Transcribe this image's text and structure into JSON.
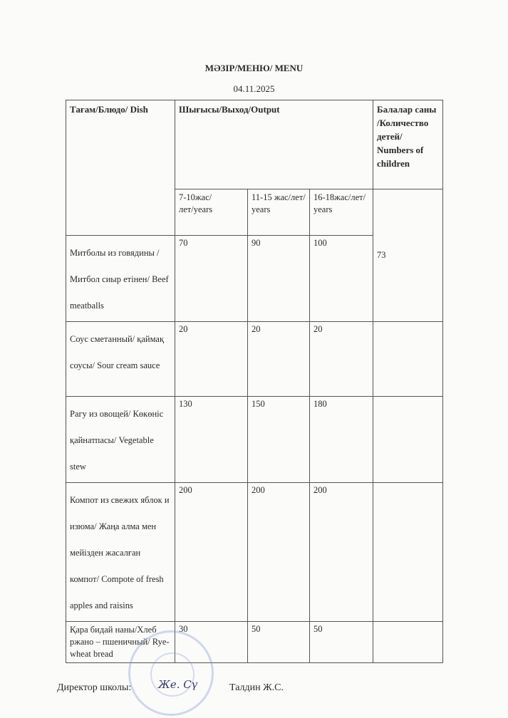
{
  "title": "МӘЗІР/МЕНЮ/ MENU",
  "date": "04.11.2025",
  "table": {
    "headers": {
      "dish": "Тағам/Блюдо/ Dish",
      "output": "Шығысы/Выход/Output",
      "children": "Балалар саны /Количество детей/ Numbers of children",
      "age_7_10": "7-10жас/лет/years",
      "age_11_15": "11-15 жас/лет/ years",
      "age_16_18": "16-18жас/лет/ years"
    },
    "children_count": "73",
    "rows": [
      {
        "dish": "Митболы из говядины /Митбол сиыр етінен/ Beef meatballs",
        "a": "70",
        "b": "90",
        "c": "100"
      },
      {
        "dish": "Соус сметанный/ қаймақ соусы/ Sour cream sauce",
        "a": "20",
        "b": "20",
        "c": "20"
      },
      {
        "dish": "Рагу из овощей/ Көкөніс қайнатпасы/ Vegetable stew",
        "a": "130",
        "b": "150",
        "c": "180"
      },
      {
        "dish": "Компот из свежих яблок и изюма/ Жаңа алма мен мейізден жасалған компот/ Compote of fresh apples and raisins",
        "a": "200",
        "b": "200",
        "c": "200"
      },
      {
        "dish": "Қара бидай наны/Хлеб ржано – пшеничный/ Rye-wheat bread",
        "a": "30",
        "b": "50",
        "c": "50"
      }
    ]
  },
  "footer": {
    "director_label": "Директор школы:",
    "director_name": "Талдин Ж.С.",
    "signature": "Же. Сү"
  }
}
